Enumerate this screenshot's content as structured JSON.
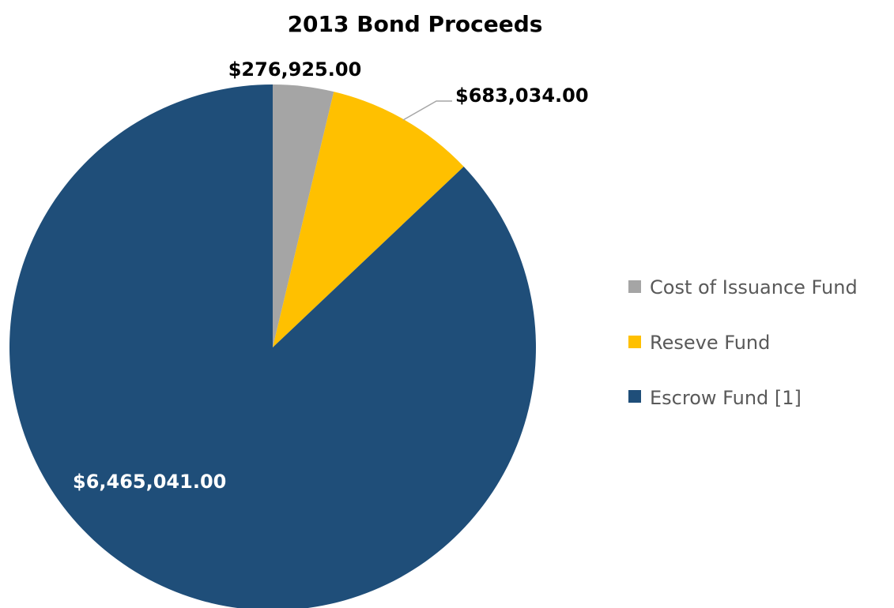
{
  "chart_data": {
    "type": "pie",
    "title": "2013 Bond Proceeds",
    "categories": [
      "Cost of Issuance Fund",
      "Reseve Fund",
      "Escrow Fund [1]"
    ],
    "values": [
      276925.0,
      683034.0,
      6465041.0
    ],
    "data_labels": [
      "$276,925.00",
      "$683,034.00",
      "$6,465,041.00"
    ],
    "colors": [
      "#a5a5a5",
      "#ffc000",
      "#1f4e79"
    ],
    "start_angle_deg": 0,
    "direction": "clockwise",
    "legend": {
      "position": "right",
      "entries": [
        "Cost of Issuance Fund",
        "Reseve Fund",
        "Escrow Fund [1]"
      ]
    }
  }
}
